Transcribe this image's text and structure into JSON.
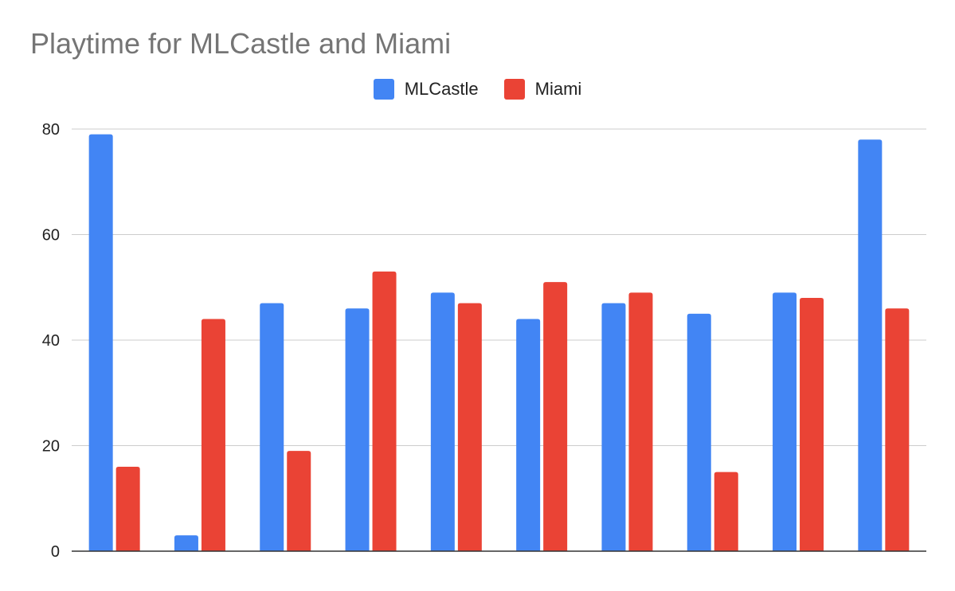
{
  "chart_data": {
    "type": "bar",
    "title": "Playtime for MLCastle and Miami",
    "xlabel": "",
    "ylabel": "",
    "ylim": [
      0,
      80
    ],
    "yticks": [
      0,
      20,
      40,
      60,
      80
    ],
    "grid": true,
    "legend_position": "top",
    "categories": [
      "",
      "",
      "",
      "",
      "",
      "",
      "",
      "",
      "",
      ""
    ],
    "series": [
      {
        "name": "MLCastle",
        "color": "#4285f4",
        "values": [
          79,
          3,
          47,
          46,
          49,
          44,
          47,
          45,
          49,
          78
        ]
      },
      {
        "name": "Miami",
        "color": "#ea4335",
        "values": [
          16,
          44,
          19,
          53,
          47,
          51,
          49,
          15,
          48,
          46
        ]
      }
    ]
  }
}
